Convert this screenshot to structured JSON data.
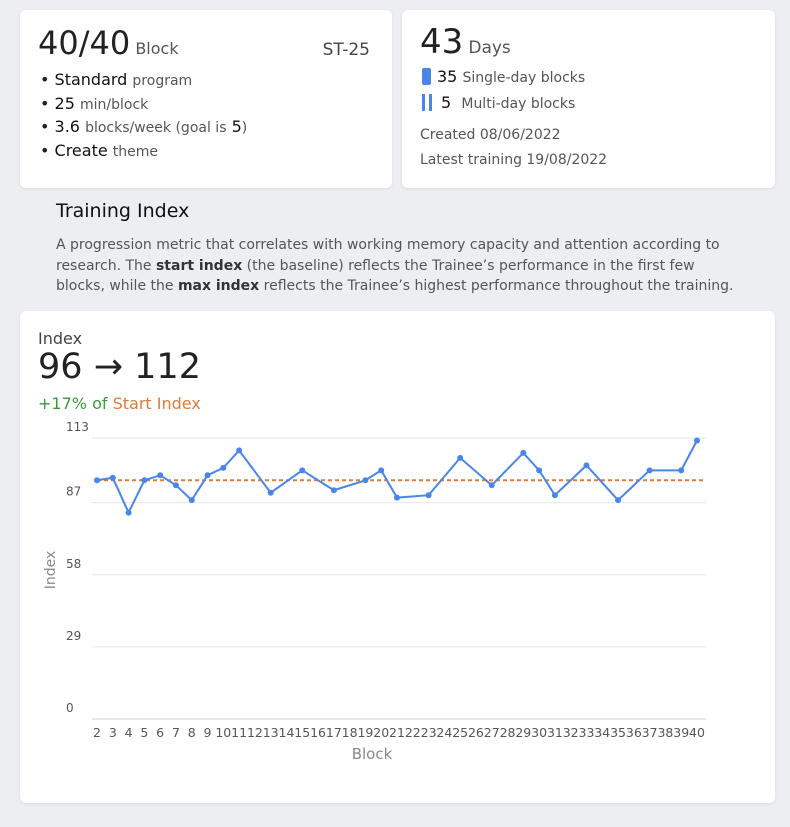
{
  "program_card": {
    "score": "40/40",
    "score_unit": "Block",
    "code": "ST-25",
    "items": [
      {
        "strong": "Standard",
        "text": "program"
      },
      {
        "strong": "25",
        "text": "min/block"
      },
      {
        "strong": "3.6",
        "text": "blocks/week (goal is",
        "goal": "5",
        "tail": ")"
      },
      {
        "strong": "Create",
        "text": "theme"
      }
    ]
  },
  "days_card": {
    "value": "43",
    "unit": "Days",
    "single": {
      "count": "35",
      "label": "Single-day blocks"
    },
    "multi": {
      "count": "5",
      "label": "Multi-day blocks"
    },
    "created": "Created 08/06/2022",
    "latest": "Latest training 19/08/2022"
  },
  "section": {
    "title": "Training Index",
    "description": {
      "part1": "A progression metric that correlates with working memory capacity and attention according to research. The ",
      "bold1": "start index",
      "part2": " (the baseline) reflects the Trainee’s performance in the first few blocks, while the ",
      "bold2": "max index",
      "part3": " reflects the Trainee’s highest performance throughout the training."
    }
  },
  "index_card": {
    "label": "Index",
    "start": "96",
    "arrow": "→",
    "max": "112",
    "change": "+17%",
    "of": "of",
    "reference": "Start Index"
  },
  "chart_data": {
    "type": "line",
    "x": [
      2,
      3,
      4,
      5,
      6,
      7,
      8,
      9,
      10,
      11,
      13,
      15,
      17,
      19,
      20,
      21,
      23,
      25,
      27,
      29,
      30,
      31,
      33,
      35,
      37,
      39,
      40
    ],
    "values": [
      96,
      97,
      83,
      96,
      98,
      94,
      88,
      98,
      101,
      108,
      91,
      100,
      92,
      96,
      100,
      89,
      90,
      105,
      94,
      107,
      100,
      90,
      102,
      88,
      100,
      100,
      112
    ],
    "color": "#4a86e8",
    "xlim": [
      2,
      40
    ],
    "xticks": [
      2,
      3,
      4,
      5,
      6,
      7,
      8,
      9,
      10,
      11,
      12,
      13,
      14,
      15,
      16,
      17,
      18,
      19,
      20,
      21,
      22,
      23,
      24,
      25,
      26,
      27,
      28,
      29,
      30,
      31,
      32,
      33,
      34,
      35,
      36,
      37,
      38,
      39,
      40
    ],
    "ylim": [
      0,
      113
    ],
    "yticks": [
      0,
      29,
      58,
      87,
      113
    ],
    "ylabel": "Index",
    "xlabel": "Block",
    "reference_line": {
      "value": 96,
      "color": "#e07b39"
    },
    "grid": true
  }
}
